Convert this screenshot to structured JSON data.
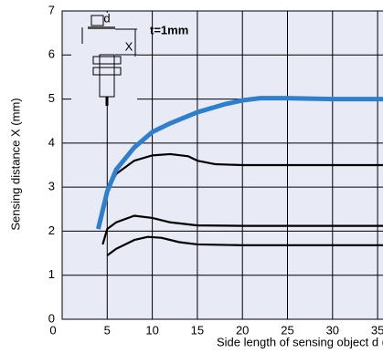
{
  "chart_data": {
    "type": "line",
    "xlabel": "Side length of sensing object d (mm)",
    "ylabel": "Sensing distance X (mm)",
    "annotations": [
      "d",
      "X",
      "t=1mm"
    ],
    "xlim": [
      0,
      40
    ],
    "ylim": [
      0,
      7
    ],
    "xticks": [
      0,
      5,
      10,
      15,
      20,
      25,
      30,
      35
    ],
    "yticks": [
      0,
      1,
      2,
      3,
      4,
      5,
      6,
      7
    ],
    "grid": true,
    "background": "#e8eaf5",
    "series": [
      {
        "color": "#2f7fcf",
        "x": [
          4,
          5,
          6,
          8,
          10,
          12,
          15,
          18,
          20,
          22,
          25,
          30,
          35,
          40
        ],
        "values": [
          2.05,
          2.9,
          3.4,
          3.9,
          4.25,
          4.45,
          4.7,
          4.88,
          4.97,
          5.02,
          5.02,
          5.0,
          5.0,
          5.0
        ]
      },
      {
        "color": "#000000",
        "x": [
          4,
          5,
          6,
          8,
          10,
          12,
          14,
          15,
          17,
          20,
          25,
          30,
          35,
          40
        ],
        "values": [
          2.05,
          2.9,
          3.3,
          3.6,
          3.72,
          3.75,
          3.7,
          3.6,
          3.52,
          3.5,
          3.5,
          3.5,
          3.5,
          3.5
        ]
      },
      {
        "color": "#000000",
        "x": [
          4.5,
          5,
          6,
          8,
          10,
          12,
          15,
          20,
          25,
          30,
          35,
          40
        ],
        "values": [
          1.7,
          2.05,
          2.2,
          2.35,
          2.3,
          2.2,
          2.13,
          2.12,
          2.12,
          2.12,
          2.12,
          2.12
        ]
      },
      {
        "color": "#000000",
        "x": [
          5,
          6,
          8,
          9.5,
          11,
          13,
          15,
          20,
          25,
          30,
          35,
          40
        ],
        "values": [
          1.45,
          1.6,
          1.8,
          1.87,
          1.85,
          1.75,
          1.7,
          1.68,
          1.68,
          1.68,
          1.68,
          1.68
        ]
      }
    ]
  }
}
